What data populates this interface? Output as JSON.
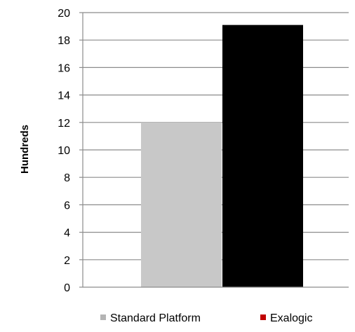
{
  "chart_data": {
    "type": "bar",
    "title": "",
    "xlabel": "",
    "ylabel": "Hundreds",
    "ylim": [
      0,
      20
    ],
    "yticks": [
      0,
      2,
      4,
      6,
      8,
      10,
      12,
      14,
      16,
      18,
      20
    ],
    "grid": true,
    "legend_position": "bottom",
    "series": [
      {
        "name": "Standard Platform",
        "value": 12,
        "color": "#c8c8c8",
        "legend_color": "#b4b4b4"
      },
      {
        "name": "Exalogic",
        "value": 19.1,
        "color": "#000000",
        "legend_color": "#c00000"
      }
    ]
  }
}
